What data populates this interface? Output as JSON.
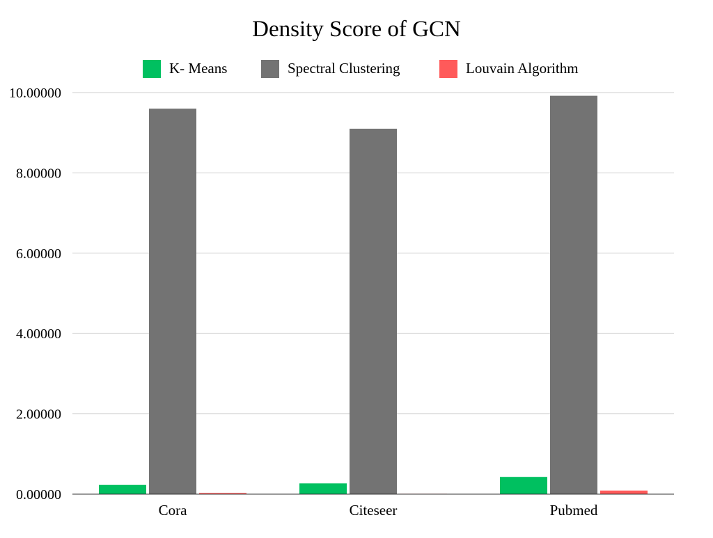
{
  "chart_data": {
    "type": "bar",
    "title": "Density Score of GCN",
    "xlabel": "",
    "ylabel": "",
    "categories": [
      "Cora",
      "Citeseer",
      "Pubmed"
    ],
    "series": [
      {
        "name": "K- Means",
        "color": "#00C060",
        "values": [
          0.23,
          0.27,
          0.43
        ]
      },
      {
        "name": "Spectral Clustering",
        "color": "#737373",
        "values": [
          9.6,
          9.1,
          9.92
        ]
      },
      {
        "name": "Louvain Algorithm",
        "color": "#FF5A5A",
        "values": [
          0.03,
          0.01,
          0.09
        ]
      }
    ],
    "ylim": [
      0,
      10
    ],
    "yticks": [
      0,
      2,
      4,
      6,
      8,
      10
    ],
    "ytick_labels": [
      "0.00000",
      "2.00000",
      "4.00000",
      "6.00000",
      "8.00000",
      "10.00000"
    ],
    "grid": true,
    "legend_position": "top"
  }
}
